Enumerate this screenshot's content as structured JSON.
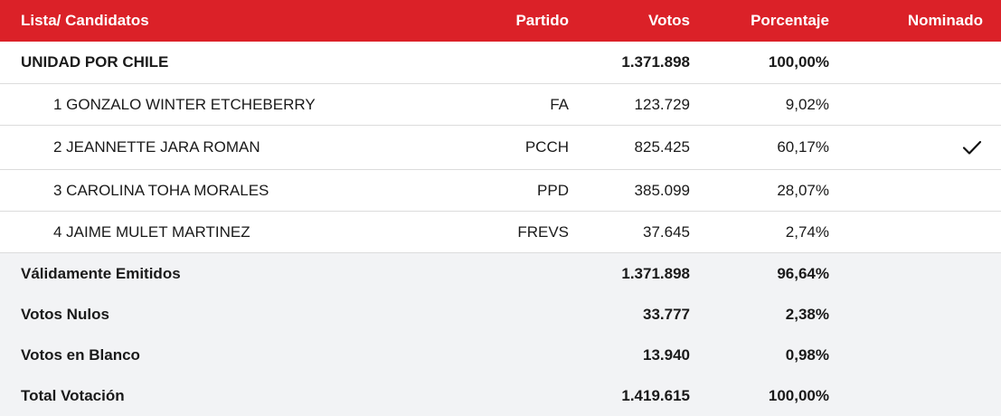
{
  "header": {
    "name": "Lista/ Candidatos",
    "party": "Partido",
    "votes": "Votos",
    "percent": "Porcentaje",
    "nominated": "Nominado"
  },
  "group": {
    "name": "UNIDAD POR CHILE",
    "votes": "1.371.898",
    "percent": "100,00%"
  },
  "candidates": [
    {
      "name": "1 GONZALO WINTER ETCHEBERRY",
      "party": "FA",
      "votes": "123.729",
      "percent": "9,02%",
      "nominated": false
    },
    {
      "name": "2 JEANNETTE JARA ROMAN",
      "party": "PCCH",
      "votes": "825.425",
      "percent": "60,17%",
      "nominated": true
    },
    {
      "name": "3 CAROLINA TOHA MORALES",
      "party": "PPD",
      "votes": "385.099",
      "percent": "28,07%",
      "nominated": false
    },
    {
      "name": "4 JAIME MULET MARTINEZ",
      "party": "FREVS",
      "votes": "37.645",
      "percent": "2,74%",
      "nominated": false
    }
  ],
  "summary": [
    {
      "label": "Válidamente Emitidos",
      "votes": "1.371.898",
      "percent": "96,64%"
    },
    {
      "label": "Votos Nulos",
      "votes": "33.777",
      "percent": "2,38%"
    },
    {
      "label": "Votos en Blanco",
      "votes": "13.940",
      "percent": "0,98%"
    },
    {
      "label": "Total Votación",
      "votes": "1.419.615",
      "percent": "100,00%"
    }
  ],
  "icons": {
    "nominated": "checkmark-icon"
  },
  "colors": {
    "header_bg": "#db2128",
    "summary_bg": "#f2f3f5",
    "border": "#dcdcdc"
  }
}
